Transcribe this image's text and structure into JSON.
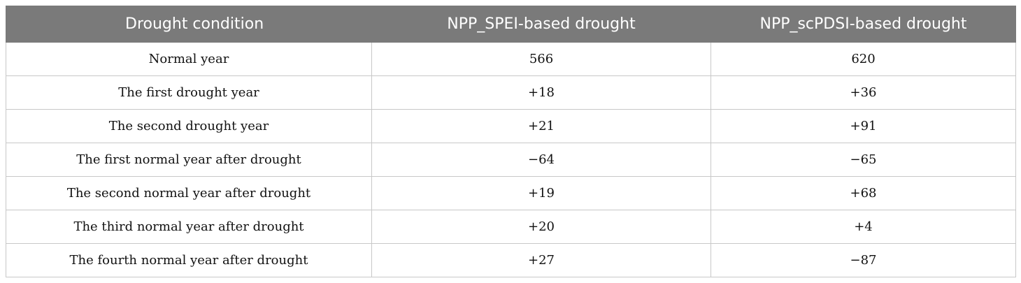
{
  "table": {
    "headers": [
      "Drought condition",
      "NPP_SPEI-based drought",
      "NPP_scPDSI-based drought"
    ],
    "rows": [
      [
        "Normal year",
        "566",
        "620"
      ],
      [
        "The first drought year",
        "+18",
        "+36"
      ],
      [
        "The second drought year",
        "+21",
        "+91"
      ],
      [
        "The first normal year after drought",
        "−64",
        "−65"
      ],
      [
        "The second normal year after drought",
        "+19",
        "+68"
      ],
      [
        "The third normal year after drought",
        "+20",
        "+4"
      ],
      [
        "The fourth normal year after drought",
        "+27",
        "−87"
      ]
    ]
  },
  "colors": {
    "header_bg": "#7a7a7a",
    "header_text": "#ffffff",
    "grid": "#c8c8c8"
  }
}
